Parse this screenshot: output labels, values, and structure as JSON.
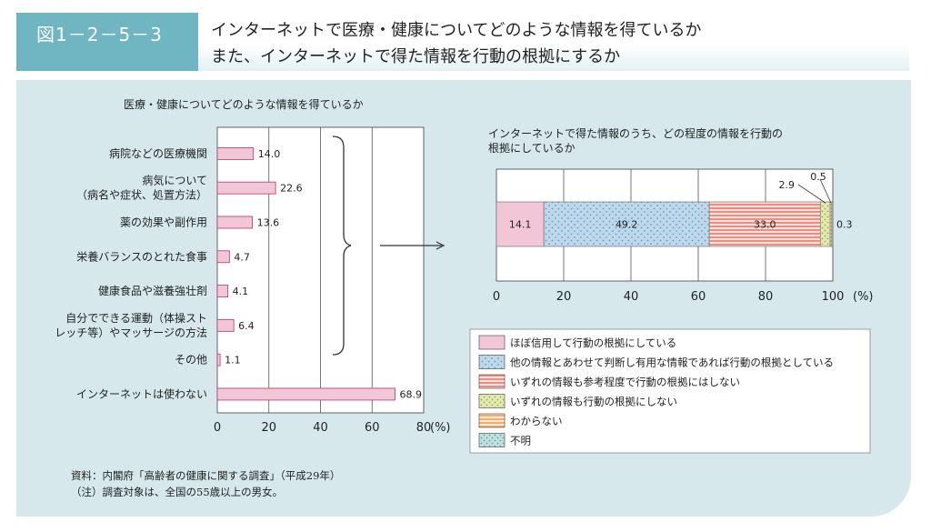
{
  "header": {
    "figure_label": "図1－2－5－3",
    "title_line1": "インターネットで医療・健康についてどのような情報を得ているか",
    "title_line2": "また、インターネットで得た情報を行動の根拠にするか"
  },
  "colors": {
    "panel_bg": "#d6e8ec",
    "label_bg": "#6fb6c2",
    "bar_pink": "#f2c6d6",
    "stack_pink": "#f2c6d6",
    "stack_blue": "#bcd8ea",
    "stack_red": "#f2a29a",
    "stack_green": "#e3eab0",
    "stack_orange": "#f6c89a",
    "stack_teal": "#bfe0df"
  },
  "chart_data": [
    {
      "type": "bar",
      "orientation": "horizontal",
      "title": "医療・健康についてどのような情報を得ているか",
      "categories": [
        "病院などの医療機関",
        "病気について\n（病名や症状、処置方法）",
        "薬の効果や副作用",
        "栄養バランスのとれた食事",
        "健康食品や滋養強壮剤",
        "自分でできる運動（体操スト\nレッチ等）やマッサージの方法",
        "その他",
        "インターネットは使わない"
      ],
      "values": [
        14.0,
        22.6,
        13.6,
        4.7,
        4.1,
        6.4,
        1.1,
        68.9
      ],
      "value_labels": [
        "14.0",
        "22.6",
        "13.6",
        "4.7",
        "4.1",
        "6.4",
        "1.1",
        "68.9"
      ],
      "xlim": [
        0,
        80
      ],
      "xticks": [
        "0",
        "20",
        "40",
        "60",
        "80"
      ],
      "xunit": "(%)",
      "grid": true
    },
    {
      "type": "bar",
      "orientation": "horizontal",
      "stacked": true,
      "title": "インターネットで得た情報のうち、どの程度の情報を行動の\n根拠にしているか",
      "xlim": [
        0,
        100
      ],
      "xticks": [
        "0",
        "20",
        "40",
        "60",
        "80",
        "100"
      ],
      "xunit": "(%)",
      "grid": true,
      "series": [
        {
          "name": "ほぼ信用して行動の根拠にしている",
          "value": 14.1,
          "label": "14.1",
          "pattern": "plain",
          "color": "#f2c6d6"
        },
        {
          "name": "他の情報とあわせて判断し有用な情報であれば行動の根拠としている",
          "value": 49.2,
          "label": "49.2",
          "pattern": "dots",
          "color": "#bcd8ea"
        },
        {
          "name": "いずれの情報も参考程度で行動の根拠にはしない",
          "value": 33.0,
          "label": "33.0",
          "pattern": "stripes",
          "color": "#f2a29a"
        },
        {
          "name": "いずれの情報も行動の根拠にしない",
          "value": 2.9,
          "label": "2.9",
          "pattern": "dots",
          "color": "#e3eab0"
        },
        {
          "name": "わからない",
          "value": 0.5,
          "label": "0.5",
          "pattern": "stripes",
          "color": "#f6c89a"
        },
        {
          "name": "不明",
          "value": 0.3,
          "label": "0.3",
          "pattern": "dots",
          "color": "#bfe0df"
        }
      ],
      "legend_position": "bottom"
    }
  ],
  "notes": {
    "source": "資料：内閣府「高齢者の健康に関する調査」（平成29年）",
    "note": "（注）調査対象は、全国の55歳以上の男女。"
  }
}
